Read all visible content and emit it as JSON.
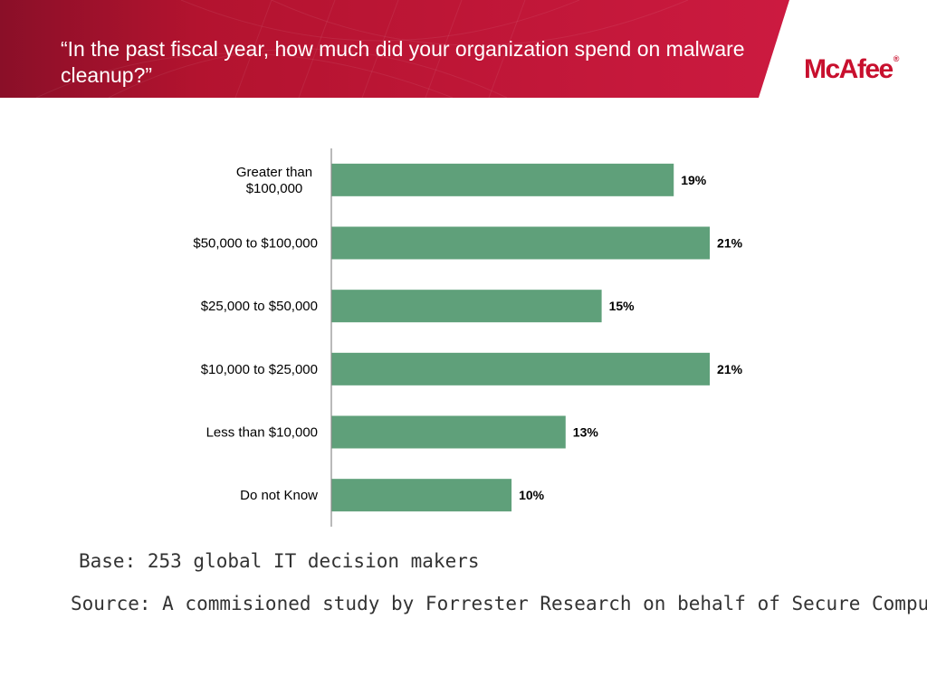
{
  "header": {
    "title": "“In the past fiscal year, how much did your organization spend on malware cleanup?”",
    "logo_text": "McAfee",
    "logo_mark": "®"
  },
  "colors": {
    "banner": "#c8183f",
    "banner_dark": "#8a0f28",
    "bar": "#5fa07a",
    "axis": "#8c8c8c"
  },
  "chart_data": {
    "type": "bar",
    "orientation": "horizontal",
    "categories": [
      [
        "Greater than",
        "$100,000"
      ],
      [
        "$50,000 to $100,000"
      ],
      [
        "$25,000 to $50,000"
      ],
      [
        "$10,000 to $25,000"
      ],
      [
        "Less than $10,000"
      ],
      [
        "Do not Know"
      ]
    ],
    "values": [
      19,
      21,
      15,
      21,
      13,
      10
    ],
    "value_labels": [
      "19%",
      "21%",
      "15%",
      "21%",
      "13%",
      "10%"
    ],
    "unit": "%",
    "xlim": [
      0,
      21.5
    ],
    "grid": false,
    "legend": "none"
  },
  "notes": {
    "base": "Base: 253 global IT decision makers",
    "source": "Source: A commisioned study by Forrester Research on behalf of Secure Computing"
  }
}
